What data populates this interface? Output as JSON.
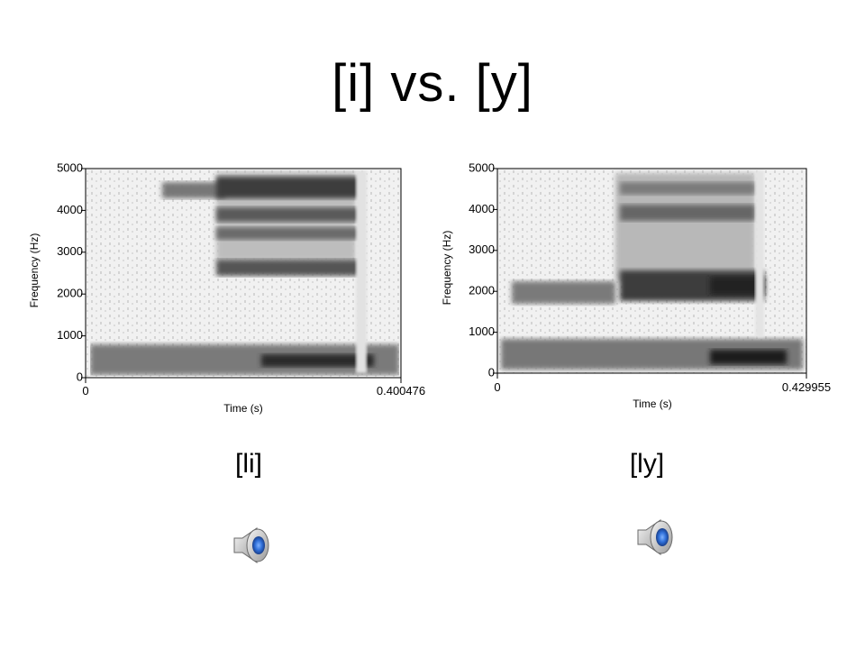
{
  "title": "[i] vs. [y]",
  "panels": [
    {
      "ylabel": "Frequency (Hz)",
      "xlabel": "Time (s)",
      "yticks": [
        "0",
        "1000",
        "2000",
        "3000",
        "4000",
        "5000"
      ],
      "xmin_label": "0",
      "xmax_label": "0.400476",
      "caption": "[li]"
    },
    {
      "ylabel": "Frequency (Hz)",
      "xlabel": "Time (s)",
      "yticks": [
        "0",
        "1000",
        "2000",
        "3000",
        "4000",
        "5000"
      ],
      "xmin_label": "0",
      "xmax_label": "0.429955",
      "caption": "[ly]"
    }
  ],
  "audio": [
    {
      "icon": "speaker-icon"
    },
    {
      "icon": "speaker-icon"
    }
  ],
  "colors": {
    "ink": "#000000",
    "speaker_blue": "#2f6fd8"
  }
}
